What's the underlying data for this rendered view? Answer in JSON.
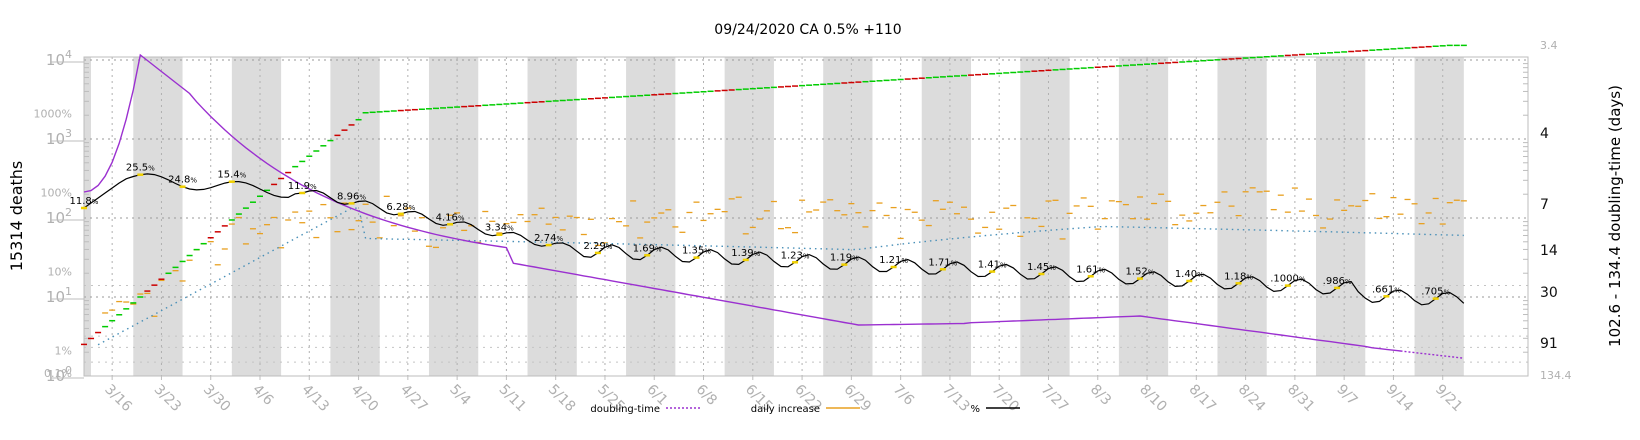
{
  "chart_data": {
    "type": "line",
    "title": "09/24/2020 CA 0.5% +110",
    "ylabel_left": "15314 deaths",
    "ylabel_right": "102.6 - 134.4 doubling-time (days)",
    "x_ticks": [
      "3/16",
      "3/23",
      "3/30",
      "4/6",
      "4/13",
      "4/20",
      "4/27",
      "5/4",
      "5/11",
      "5/18",
      "5/25",
      "6/1",
      "6/8",
      "6/15",
      "6/22",
      "6/29",
      "7/6",
      "7/13",
      "7/20",
      "7/27",
      "8/3",
      "8/10",
      "8/17",
      "8/24",
      "8/31",
      "9/7",
      "9/14",
      "9/21"
    ],
    "y_ticks_deaths": [
      {
        "base": "10",
        "exp": "0",
        "value": 1
      },
      {
        "base": "10",
        "exp": "1",
        "value": 10
      },
      {
        "base": "10",
        "exp": "2",
        "value": 100
      },
      {
        "base": "10",
        "exp": "3",
        "value": 1000
      },
      {
        "base": "10",
        "exp": "4",
        "value": 10000
      }
    ],
    "y_ticks_percent": [
      {
        "label": "0.1%",
        "value": 0.1
      },
      {
        "label": "1%",
        "value": 1
      },
      {
        "label": "10%",
        "value": 10
      },
      {
        "label": "100%",
        "value": 100
      },
      {
        "label": "1000%",
        "value": 1000
      }
    ],
    "y_ticks_doubling": [
      {
        "label": "3.4",
        "value": 3.4
      },
      {
        "label": "4",
        "value": 4
      },
      {
        "label": "7",
        "value": 7
      },
      {
        "label": "14",
        "value": 14
      },
      {
        "label": "30",
        "value": 30
      },
      {
        "label": "91",
        "value": 91
      },
      {
        "label": "134.4",
        "value": 134.4
      }
    ],
    "legend": [
      {
        "name": "doubling-time",
        "color": "#9b30d0",
        "style": "dotted"
      },
      {
        "name": "daily increase",
        "color": "#e8a020",
        "style": "solid"
      },
      {
        "name": "%",
        "color": "#000000",
        "style": "solid"
      }
    ],
    "percent_labels": [
      {
        "date": "3/12",
        "value": "11.8"
      },
      {
        "date": "3/20",
        "value": "25.5"
      },
      {
        "date": "3/26",
        "value": "24.8"
      },
      {
        "date": "4/2",
        "value": "15.4"
      },
      {
        "date": "4/12",
        "value": "11.9"
      },
      {
        "date": "4/19",
        "value": "8.96"
      },
      {
        "date": "4/26",
        "value": "6.28"
      },
      {
        "date": "5/3",
        "value": "4.16"
      },
      {
        "date": "5/10",
        "value": "3.34"
      },
      {
        "date": "5/17",
        "value": "2.74"
      },
      {
        "date": "5/24",
        "value": "2.29"
      },
      {
        "date": "5/31",
        "value": "1.69"
      },
      {
        "date": "6/7",
        "value": "1.35"
      },
      {
        "date": "6/14",
        "value": "1.39"
      },
      {
        "date": "6/21",
        "value": "1.23"
      },
      {
        "date": "6/28",
        "value": "1.19"
      },
      {
        "date": "7/5",
        "value": "1.21"
      },
      {
        "date": "7/12",
        "value": "1.71"
      },
      {
        "date": "7/19",
        "value": "1.41"
      },
      {
        "date": "7/26",
        "value": "1.45"
      },
      {
        "date": "8/2",
        "value": "1.61"
      },
      {
        "date": "8/9",
        "value": "1.52"
      },
      {
        "date": "8/16",
        "value": "1.40"
      },
      {
        "date": "8/23",
        "value": "1.18"
      },
      {
        "date": "8/30",
        "value": ".1000"
      },
      {
        "date": "9/6",
        "value": ".986"
      },
      {
        "date": "9/13",
        "value": ".661"
      },
      {
        "date": "9/20",
        "value": ".705"
      }
    ],
    "colors": {
      "cumulative_up": "#00cc00",
      "cumulative_down": "#cc0000",
      "doubling": "#9b30d0",
      "daily": "#e8a020",
      "percent": "#000000",
      "ma_dotted": "#4a90b8",
      "weekend_band": "#dcdcdc"
    }
  }
}
